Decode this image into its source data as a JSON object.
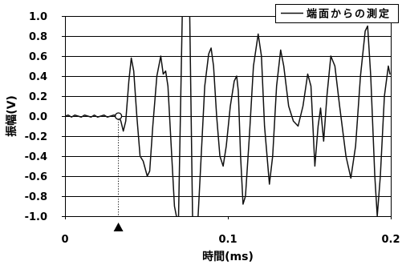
{
  "chart_data": {
    "type": "line",
    "xlabel": "時間(ms)",
    "ylabel": "振幅(V)",
    "xlim": [
      0,
      0.2
    ],
    "ylim": [
      -1.0,
      1.0
    ],
    "x_ticks": [
      {
        "value": 0,
        "label": "0"
      },
      {
        "value": 0.1,
        "label": "0.1"
      },
      {
        "value": 0.2,
        "label": "0.2"
      }
    ],
    "y_ticks": [
      {
        "value": 1.0,
        "label": "1.0"
      },
      {
        "value": 0.8,
        "label": "0.8"
      },
      {
        "value": 0.6,
        "label": "0.6"
      },
      {
        "value": 0.4,
        "label": "0.4"
      },
      {
        "value": 0.2,
        "label": "0.2"
      },
      {
        "value": 0.0,
        "label": "0.0"
      },
      {
        "value": -0.2,
        "label": "-0.2"
      },
      {
        "value": -0.4,
        "label": "-0.4"
      },
      {
        "value": -0.6,
        "label": "-0.6"
      },
      {
        "value": -0.8,
        "label": "-0.8"
      },
      {
        "value": -1.0,
        "label": "-1.0"
      }
    ],
    "grid": {
      "y": true,
      "x": false
    },
    "legend": {
      "position": "top-right"
    },
    "series": [
      {
        "name": "端面からの測定",
        "color": "#111111",
        "x": [
          0,
          0.002,
          0.004,
          0.006,
          0.008,
          0.01,
          0.012,
          0.014,
          0.016,
          0.018,
          0.02,
          0.022,
          0.024,
          0.026,
          0.028,
          0.03,
          0.0328,
          0.0343,
          0.0358,
          0.0373,
          0.0392,
          0.0407,
          0.0422,
          0.0441,
          0.0461,
          0.048,
          0.0505,
          0.052,
          0.0539,
          0.0564,
          0.0588,
          0.0603,
          0.0618,
          0.0632,
          0.0652,
          0.0672,
          0.0696,
          0.0721,
          0.0765,
          0.0784,
          0.0814,
          0.0833,
          0.0858,
          0.0882,
          0.0897,
          0.0912,
          0.0931,
          0.0951,
          0.0971,
          0.099,
          0.1015,
          0.1039,
          0.1054,
          0.1064,
          0.1078,
          0.1093,
          0.1108,
          0.1132,
          0.1157,
          0.1186,
          0.1206,
          0.1225,
          0.1255,
          0.1275,
          0.1299,
          0.1324,
          0.1343,
          0.1373,
          0.1402,
          0.1431,
          0.1461,
          0.149,
          0.151,
          0.1534,
          0.1554,
          0.1569,
          0.1588,
          0.1608,
          0.1632,
          0.1657,
          0.1686,
          0.1725,
          0.1755,
          0.1784,
          0.1814,
          0.1843,
          0.1858,
          0.1877,
          0.1902,
          0.1917,
          0.1936,
          0.1961,
          0.1985,
          0.1995
        ],
        "y": [
          0.0,
          0.01,
          -0.01,
          0.01,
          0.0,
          -0.01,
          0.01,
          0.0,
          -0.01,
          0.01,
          -0.01,
          0.0,
          0.01,
          -0.01,
          0.0,
          0.01,
          0.0,
          -0.05,
          -0.15,
          -0.05,
          0.35,
          0.58,
          0.45,
          0.0,
          -0.4,
          -0.45,
          -0.6,
          -0.55,
          -0.1,
          0.4,
          0.6,
          0.42,
          0.45,
          0.3,
          -0.3,
          -0.9,
          -1.1,
          1.1,
          1.1,
          -1.1,
          -1.1,
          -0.5,
          0.3,
          0.62,
          0.68,
          0.5,
          0.0,
          -0.4,
          -0.5,
          -0.3,
          0.1,
          0.35,
          0.4,
          0.25,
          -0.4,
          -0.88,
          -0.8,
          -0.2,
          0.5,
          0.82,
          0.6,
          -0.1,
          -0.68,
          -0.4,
          0.3,
          0.66,
          0.5,
          0.1,
          -0.05,
          -0.1,
          0.1,
          0.42,
          0.3,
          -0.5,
          -0.1,
          0.08,
          -0.25,
          0.2,
          0.6,
          0.5,
          0.1,
          -0.4,
          -0.62,
          -0.3,
          0.4,
          0.85,
          0.9,
          0.4,
          -0.6,
          -1.0,
          -0.6,
          0.2,
          0.5,
          0.42
        ]
      }
    ],
    "onset_marker": {
      "x": 0.0328,
      "y": 0.0
    }
  }
}
